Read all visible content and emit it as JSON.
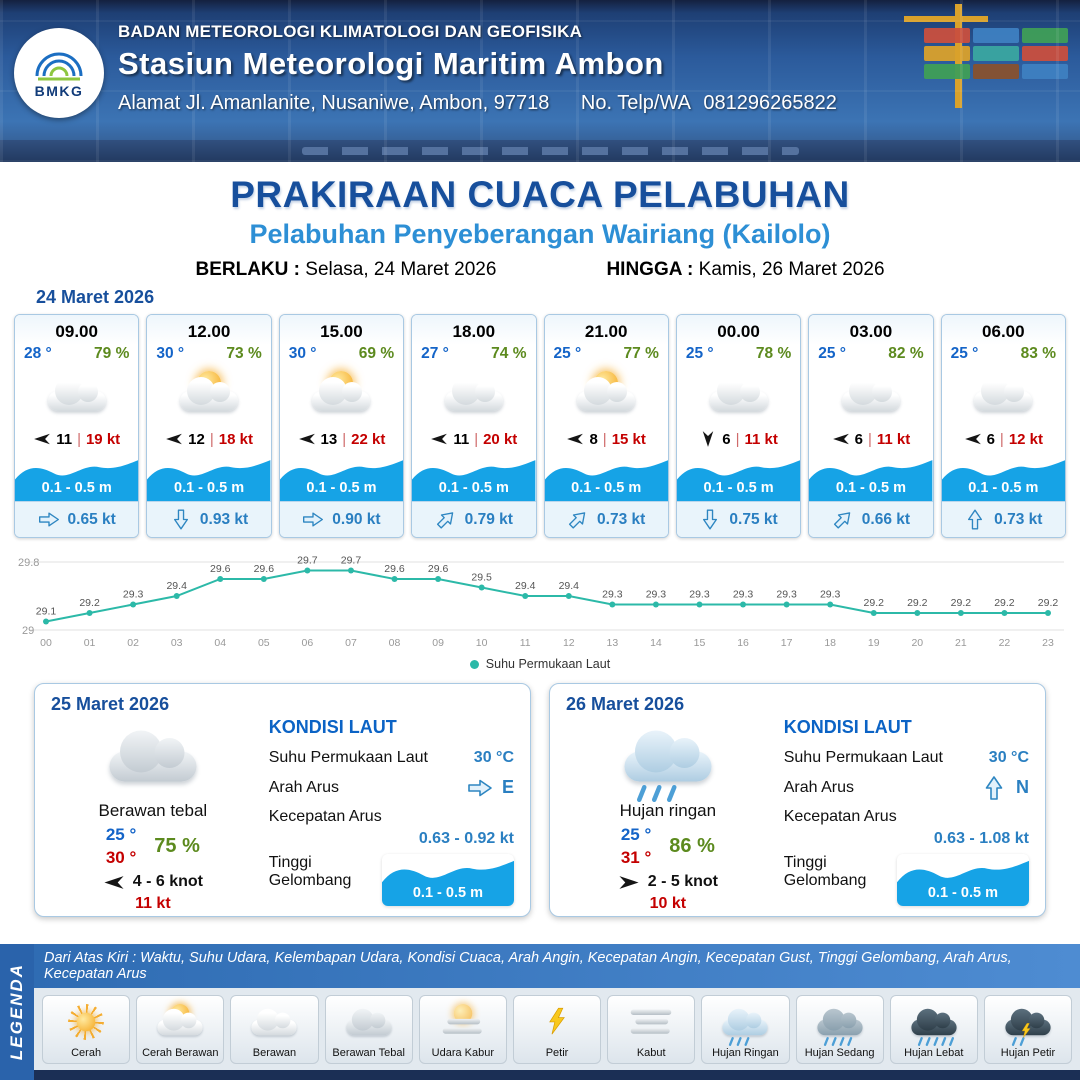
{
  "header": {
    "logo_text": "BMKG",
    "org": "BADAN METEOROLOGI KLIMATOLOGI DAN GEOFISIKA",
    "station": "Stasiun Meteorologi Maritim Ambon",
    "address": "Alamat Jl. Amanlanite, Nusaniwe, Ambon, 97718",
    "phone_label": "No. Telp/WA",
    "phone": "081296265822"
  },
  "title": {
    "main": "PRAKIRAAN CUACA PELABUHAN",
    "sub": "Pelabuhan Penyeberangan Wairiang (Kailolo)",
    "berlaku_label": "BERLAKU :",
    "berlaku_value": "Selasa, 24 Maret 2026",
    "hingga_label": "HINGGA :",
    "hingga_value": "Kamis, 26 Maret 2026"
  },
  "hourly": {
    "date": "24 Maret 2026",
    "sep": "|",
    "cards": [
      {
        "time": "09.00",
        "temp": "28 °",
        "humidity": "79 %",
        "icon": "cloudy",
        "wind_dir": "W",
        "wind": "11",
        "gust": "19 kt",
        "wave": "0.1 - 0.5 m",
        "current_dir": "E",
        "current": "0.65 kt"
      },
      {
        "time": "12.00",
        "temp": "30 °",
        "humidity": "73 %",
        "icon": "partly",
        "wind_dir": "W",
        "wind": "12",
        "gust": "18 kt",
        "wave": "0.1 - 0.5 m",
        "current_dir": "S",
        "current": "0.93 kt"
      },
      {
        "time": "15.00",
        "temp": "30 °",
        "humidity": "69 %",
        "icon": "partly",
        "wind_dir": "W",
        "wind": "13",
        "gust": "22 kt",
        "wave": "0.1 - 0.5 m",
        "current_dir": "E",
        "current": "0.90 kt"
      },
      {
        "time": "18.00",
        "temp": "27 °",
        "humidity": "74 %",
        "icon": "cloudy",
        "wind_dir": "W",
        "wind": "11",
        "gust": "20 kt",
        "wave": "0.1 - 0.5 m",
        "current_dir": "NE",
        "current": "0.79 kt"
      },
      {
        "time": "21.00",
        "temp": "25 °",
        "humidity": "77 %",
        "icon": "partly",
        "wind_dir": "W",
        "wind": "8",
        "gust": "15 kt",
        "wave": "0.1 - 0.5 m",
        "current_dir": "NE",
        "current": "0.73 kt"
      },
      {
        "time": "00.00",
        "temp": "25 °",
        "humidity": "78 %",
        "icon": "cloudy",
        "wind_dir": "S",
        "wind": "6",
        "gust": "11 kt",
        "wave": "0.1 - 0.5 m",
        "current_dir": "S",
        "current": "0.75 kt"
      },
      {
        "time": "03.00",
        "temp": "25 °",
        "humidity": "82 %",
        "icon": "cloudy",
        "wind_dir": "W",
        "wind": "6",
        "gust": "11 kt",
        "wave": "0.1 - 0.5 m",
        "current_dir": "NE",
        "current": "0.66 kt"
      },
      {
        "time": "06.00",
        "temp": "25 °",
        "humidity": "83 %",
        "icon": "cloudy",
        "wind_dir": "W",
        "wind": "6",
        "gust": "12 kt",
        "wave": "0.1 - 0.5 m",
        "current_dir": "N",
        "current": "0.73 kt"
      }
    ]
  },
  "chart_data": {
    "type": "line",
    "title": "Suhu Permukaan Laut",
    "legend": "Suhu Permukaan Laut",
    "x": [
      "00",
      "01",
      "02",
      "03",
      "04",
      "05",
      "06",
      "07",
      "08",
      "09",
      "10",
      "11",
      "12",
      "13",
      "14",
      "15",
      "16",
      "17",
      "18",
      "19",
      "20",
      "21",
      "22",
      "23"
    ],
    "values": [
      29.1,
      29.2,
      29.3,
      29.4,
      29.6,
      29.6,
      29.7,
      29.7,
      29.6,
      29.6,
      29.5,
      29.4,
      29.4,
      29.3,
      29.3,
      29.3,
      29.3,
      29.3,
      29.3,
      29.2,
      29.2,
      29.2,
      29.2,
      29.2
    ],
    "ylim": [
      29,
      29.8
    ],
    "xlabel": "",
    "ylabel": "",
    "grid": false,
    "legend_position": "bottom",
    "line_color": "#2cb9a8"
  },
  "daily": [
    {
      "date": "25 Maret 2026",
      "icon": "cloud-thick",
      "condition": "Berawan tebal",
      "temp_min": "25 °",
      "temp_max": "30 °",
      "humidity": "75 %",
      "wind_dir": "W",
      "wind": "4 - 6 knot",
      "gust": "11 kt",
      "sea": {
        "title": "KONDISI LAUT",
        "sst_label": "Suhu Permukaan Laut",
        "sst": "30 °C",
        "arus_dir_label": "Arah Arus",
        "arus_dir": "E",
        "arus_speed_label": "Kecepatan Arus",
        "arus_speed": "0.63 - 0.92 kt",
        "wave_label": "Tinggi Gelombang",
        "wave": "0.1 - 0.5 m"
      }
    },
    {
      "date": "26 Maret 2026",
      "icon": "rain-light",
      "condition": "Hujan ringan",
      "temp_min": "25 °",
      "temp_max": "31 °",
      "humidity": "86 %",
      "wind_dir": "E",
      "wind": "2 - 5 knot",
      "gust": "10 kt",
      "sea": {
        "title": "KONDISI LAUT",
        "sst_label": "Suhu Permukaan Laut",
        "sst": "30 °C",
        "arus_dir_label": "Arah Arus",
        "arus_dir": "N",
        "arus_speed_label": "Kecepatan Arus",
        "arus_speed": "0.63 - 1.08 kt",
        "wave_label": "Tinggi Gelombang",
        "wave": "0.1 - 0.5 m"
      }
    }
  ],
  "legend": {
    "side_label": "LEGENDA",
    "note": "Dari Atas Kiri : Waktu, Suhu Udara, Kelembapan Udara, Kondisi Cuaca, Arah Angin, Kecepatan Angin, Kecepatan Gust, Tinggi Gelombang, Arah Arus, Kecepatan Arus",
    "items": [
      {
        "label": "Cerah",
        "icon": "sun"
      },
      {
        "label": "Cerah Berawan",
        "icon": "sun-cloud"
      },
      {
        "label": "Berawan",
        "icon": "cloud"
      },
      {
        "label": "Berawan Tebal",
        "icon": "cloud-thick"
      },
      {
        "label": "Udara Kabur",
        "icon": "haze"
      },
      {
        "label": "Petir",
        "icon": "bolt"
      },
      {
        "label": "Kabut",
        "icon": "fog"
      },
      {
        "label": "Hujan Ringan",
        "icon": "rain-light"
      },
      {
        "label": "Hujan Sedang",
        "icon": "rain-moderate"
      },
      {
        "label": "Hujan Lebat",
        "icon": "rain-heavy"
      },
      {
        "label": "Hujan Petir",
        "icon": "thunderstorm"
      }
    ]
  },
  "colors": {
    "accent_navy": "#174f9c",
    "accent_blue": "#2d8fd5",
    "temp_blue": "#1464c8",
    "humidity_green": "#5c8a1e",
    "gust_red": "#c40000",
    "wave_blue": "#16a3e6",
    "chart_teal": "#2cb9a8"
  }
}
